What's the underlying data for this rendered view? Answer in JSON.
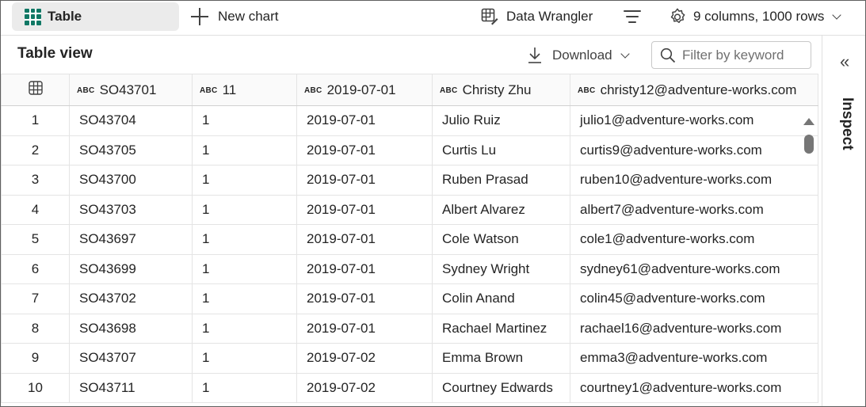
{
  "toolbar": {
    "table_tab": "Table",
    "new_chart": "New chart",
    "data_wrangler": "Data Wrangler",
    "columns_info": "9 columns, 1000 rows"
  },
  "subbar": {
    "title": "Table view",
    "download": "Download",
    "filter_placeholder": "Filter by keyword"
  },
  "inspect": {
    "label": "Inspect"
  },
  "table": {
    "type_badge": "ABC",
    "headers": [
      "SO43701",
      "11",
      "2019-07-01",
      "Christy Zhu",
      "christy12@adventure-works.com"
    ],
    "rows": [
      [
        "1",
        "SO43704",
        "1",
        "2019-07-01",
        "Julio Ruiz",
        "julio1@adventure-works.com"
      ],
      [
        "2",
        "SO43705",
        "1",
        "2019-07-01",
        "Curtis Lu",
        "curtis9@adventure-works.com"
      ],
      [
        "3",
        "SO43700",
        "1",
        "2019-07-01",
        "Ruben Prasad",
        "ruben10@adventure-works.com"
      ],
      [
        "4",
        "SO43703",
        "1",
        "2019-07-01",
        "Albert Alvarez",
        "albert7@adventure-works.com"
      ],
      [
        "5",
        "SO43697",
        "1",
        "2019-07-01",
        "Cole Watson",
        "cole1@adventure-works.com"
      ],
      [
        "6",
        "SO43699",
        "1",
        "2019-07-01",
        "Sydney Wright",
        "sydney61@adventure-works.com"
      ],
      [
        "7",
        "SO43702",
        "1",
        "2019-07-01",
        "Colin Anand",
        "colin45@adventure-works.com"
      ],
      [
        "8",
        "SO43698",
        "1",
        "2019-07-01",
        "Rachael Martinez",
        "rachael16@adventure-works.com"
      ],
      [
        "9",
        "SO43707",
        "1",
        "2019-07-02",
        "Emma Brown",
        "emma3@adventure-works.com"
      ],
      [
        "10",
        "SO43711",
        "1",
        "2019-07-02",
        "Courtney Edwards",
        "courtney1@adventure-works.com"
      ]
    ]
  },
  "colors": {
    "accent": "#117865",
    "border": "#e4e4e4",
    "tab_bg": "#ebebeb"
  }
}
